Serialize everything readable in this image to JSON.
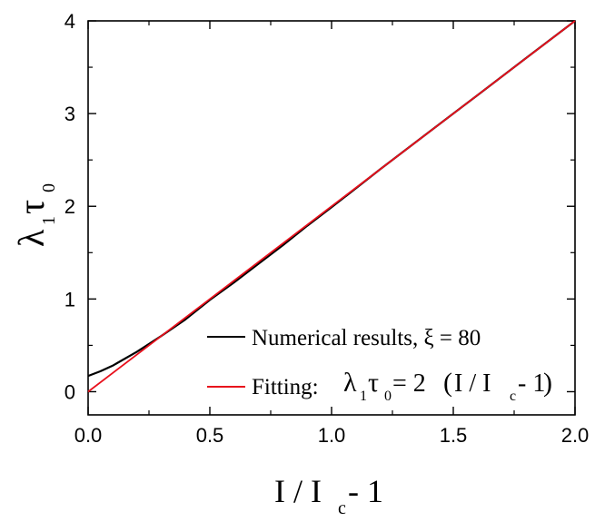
{
  "chart_data": {
    "type": "line",
    "xlabel": {
      "main": "I / I",
      "sub": "c",
      "tail": " - 1"
    },
    "ylabel": {
      "a": "λ",
      "a_sub": "1",
      "b": "τ",
      "b_sub": "0"
    },
    "xlim": [
      0,
      2
    ],
    "ylim": [
      -0.25,
      4
    ],
    "x_ticks": [
      "0.0",
      "0.5",
      "1.0",
      "1.5",
      "2.0"
    ],
    "y_ticks": [
      "0",
      "1",
      "2",
      "3",
      "4"
    ],
    "grid": false,
    "legend_position": "bottom-right",
    "series": [
      {
        "name": "Numerical results, ξ = 80",
        "color": "#000000",
        "x": [
          0,
          0.05,
          0.1,
          0.2,
          0.3,
          0.4,
          0.5,
          0.6,
          0.7,
          0.8,
          0.9,
          1.0,
          1.2,
          1.4,
          1.6,
          1.8,
          2.0
        ],
        "y": [
          0.17,
          0.22,
          0.28,
          0.43,
          0.6,
          0.78,
          0.99,
          1.18,
          1.38,
          1.58,
          1.79,
          1.99,
          2.4,
          2.8,
          3.2,
          3.6,
          4.0
        ]
      },
      {
        "name": "Fitting:",
        "formula": {
          "a": "λ",
          "a_sub": "1",
          "b": "τ",
          "b_sub": "0",
          "mid": " = 2",
          "paren_open": "(",
          "inner": "I / I",
          "inner_sub": "c",
          "inner_tail": " - 1",
          "paren_close": ")"
        },
        "color": "#e8101c",
        "x": [
          0,
          2
        ],
        "y": [
          0,
          4
        ]
      }
    ]
  }
}
